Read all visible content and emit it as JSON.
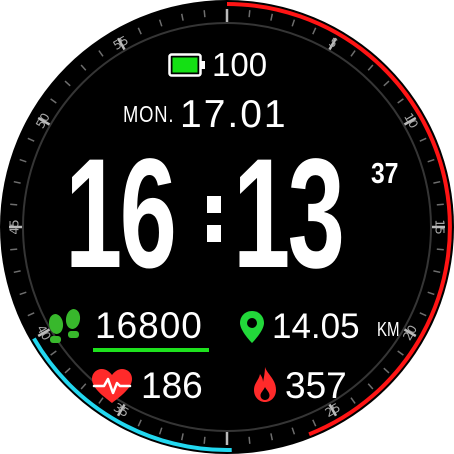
{
  "battery": {
    "level": "100",
    "fill_color": "#14e014",
    "icon": "battery-icon"
  },
  "date": {
    "day": "MON.",
    "date": "17.01"
  },
  "time": {
    "hours": "16",
    "minutes": "13",
    "seconds": "37"
  },
  "dial": {
    "bezel_labels": [
      "55",
      "5",
      "50",
      "10",
      "45",
      "15",
      "40",
      "20",
      "35",
      "25"
    ],
    "red_arc_color": "#ff1414",
    "blue_arc_color": "#22d8f0",
    "red_arc_fraction": 0.44,
    "blue_arc_fraction": 0.17
  },
  "stats": {
    "steps": {
      "value": "16800",
      "icon": "footsteps-icon",
      "color": "#38b82c",
      "progress_color": "#1ee21e"
    },
    "distance": {
      "value": "14.05",
      "unit": "KM",
      "icon": "location-pin-icon",
      "color": "#22d83a"
    },
    "heart_rate": {
      "value": "186",
      "icon": "heart-pulse-icon",
      "color": "#ff2a2a"
    },
    "calories": {
      "value": "357",
      "icon": "flame-icon",
      "color": "#ff2a2a"
    }
  }
}
